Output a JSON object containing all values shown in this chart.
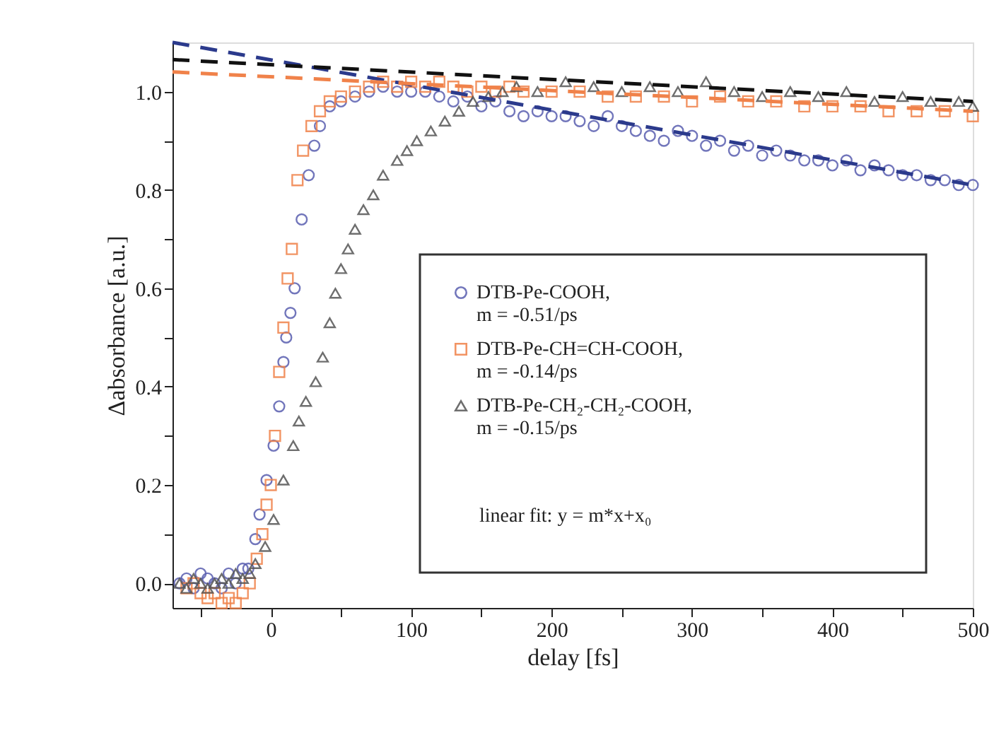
{
  "chart_data": {
    "type": "scatter",
    "xlabel": "delay [fs]",
    "ylabel": "Δabsorbance [a.u.]",
    "xlim": [
      -70,
      500
    ],
    "ylim": [
      -0.05,
      1.1
    ],
    "xticks": [
      {
        "value": -50,
        "label": null
      },
      0,
      {
        "value": 50,
        "label": null
      },
      100,
      {
        "value": 150,
        "label": null
      },
      200,
      {
        "value": 250,
        "label": null
      },
      300,
      {
        "value": 350,
        "label": null
      },
      400,
      {
        "value": 450,
        "label": null
      },
      500
    ],
    "yticks": [
      {
        "value": 0,
        "label": "0.0"
      },
      {
        "value": 0.1,
        "label": null
      },
      {
        "value": 0.2,
        "label": "0.2"
      },
      {
        "value": 0.3,
        "label": null
      },
      {
        "value": 0.4,
        "label": "0.4"
      },
      {
        "value": 0.5,
        "label": null
      },
      {
        "value": 0.6,
        "label": "0.6"
      },
      {
        "value": 0.7,
        "label": null
      },
      {
        "value": 0.8,
        "label": "0.8"
      },
      {
        "value": 0.9,
        "label": null
      },
      {
        "value": 1.0,
        "label": "1.0"
      }
    ],
    "grid": false,
    "legend": "bottom right",
    "annotations": [
      "linear fit: y = m*x+x₀"
    ],
    "series": [
      {
        "name": "DTB-Pe-COOH,\n  m = -0.51/ps",
        "marker": "circle",
        "color": "#5a5fb0",
        "x": [
          -65,
          -60,
          -55,
          -50,
          -45,
          -40,
          -35,
          -30,
          -25,
          -20,
          -16,
          -11,
          -8,
          -3,
          2,
          6,
          9,
          11,
          14,
          17,
          22,
          27,
          31,
          35,
          42,
          50,
          60,
          70,
          80,
          90,
          100,
          110,
          120,
          130,
          140,
          150,
          160,
          170,
          180,
          190,
          200,
          210,
          220,
          230,
          240,
          250,
          260,
          270,
          280,
          290,
          300,
          310,
          320,
          330,
          340,
          350,
          360,
          370,
          380,
          390,
          400,
          410,
          420,
          430,
          440,
          450,
          460,
          470,
          480,
          490,
          500
        ],
        "values": [
          0.0,
          0.01,
          -0.01,
          0.02,
          0.01,
          0.0,
          -0.01,
          0.02,
          0.0,
          0.03,
          0.03,
          0.09,
          0.14,
          0.21,
          0.28,
          0.36,
          0.45,
          0.5,
          0.55,
          0.6,
          0.74,
          0.83,
          0.89,
          0.93,
          0.97,
          0.98,
          0.99,
          1.0,
          1.01,
          1.0,
          1.0,
          1.0,
          0.99,
          0.98,
          0.99,
          0.97,
          0.98,
          0.96,
          0.95,
          0.96,
          0.95,
          0.95,
          0.94,
          0.93,
          0.95,
          0.93,
          0.92,
          0.91,
          0.9,
          0.92,
          0.91,
          0.89,
          0.9,
          0.88,
          0.89,
          0.87,
          0.88,
          0.87,
          0.86,
          0.86,
          0.85,
          0.86,
          0.84,
          0.85,
          0.84,
          0.83,
          0.83,
          0.82,
          0.82,
          0.81,
          0.81
        ]
      },
      {
        "name": "DTB-Pe-CH=CH-COOH,\n  m = -0.14/ps",
        "marker": "square",
        "color": "#f0824a",
        "x": [
          -60,
          -55,
          -50,
          -45,
          -40,
          -35,
          -30,
          -25,
          -20,
          -15,
          -10,
          -6,
          -3,
          0,
          3,
          6,
          9,
          12,
          15,
          19,
          23,
          29,
          35,
          42,
          50,
          60,
          70,
          80,
          90,
          100,
          110,
          120,
          130,
          140,
          150,
          160,
          170,
          180,
          200,
          220,
          240,
          260,
          280,
          300,
          320,
          340,
          360,
          380,
          400,
          420,
          440,
          460,
          480,
          500
        ],
        "values": [
          -0.01,
          0.0,
          -0.02,
          -0.03,
          -0.02,
          -0.04,
          -0.03,
          -0.04,
          -0.02,
          0.0,
          0.05,
          0.1,
          0.16,
          0.2,
          0.3,
          0.43,
          0.52,
          0.62,
          0.68,
          0.82,
          0.88,
          0.93,
          0.96,
          0.98,
          0.99,
          1.0,
          1.01,
          1.02,
          1.01,
          1.02,
          1.01,
          1.02,
          1.01,
          1.0,
          1.01,
          1.0,
          1.01,
          1.0,
          1.0,
          1.0,
          0.99,
          0.99,
          0.99,
          0.98,
          0.99,
          0.98,
          0.98,
          0.97,
          0.97,
          0.97,
          0.96,
          0.96,
          0.96,
          0.95
        ]
      },
      {
        "name": "DTB-Pe-CH₂-CH₂-COOH,\n  m = -0.15/ps",
        "marker": "triangle",
        "color": "#555555",
        "x": [
          -65,
          -60,
          -55,
          -50,
          -45,
          -40,
          -35,
          -30,
          -25,
          -20,
          -15,
          -11,
          -4,
          2,
          9,
          16,
          20,
          25,
          32,
          37,
          42,
          46,
          50,
          55,
          60,
          66,
          73,
          80,
          90,
          97,
          104,
          114,
          124,
          134,
          144,
          155,
          165,
          175,
          190,
          210,
          230,
          250,
          270,
          290,
          310,
          330,
          350,
          370,
          390,
          410,
          430,
          450,
          470,
          490,
          500
        ],
        "values": [
          0.0,
          -0.01,
          0.01,
          0.0,
          -0.01,
          0.0,
          0.01,
          0.0,
          0.02,
          0.01,
          0.02,
          0.04,
          0.075,
          0.13,
          0.21,
          0.28,
          0.33,
          0.37,
          0.41,
          0.46,
          0.53,
          0.59,
          0.64,
          0.68,
          0.72,
          0.76,
          0.79,
          0.83,
          0.86,
          0.88,
          0.9,
          0.92,
          0.94,
          0.96,
          0.98,
          0.99,
          1.0,
          1.01,
          1.0,
          1.02,
          1.01,
          1.0,
          1.01,
          1.0,
          1.02,
          1.0,
          0.99,
          1.0,
          0.99,
          1.0,
          0.98,
          0.99,
          0.98,
          0.98,
          0.97
        ]
      },
      {
        "type": "line",
        "line_style": "dashed",
        "color": "#2b3a8c",
        "x": [
          -70,
          500
        ],
        "values": [
          1.1,
          0.81
        ]
      },
      {
        "type": "line",
        "line_style": "dashed",
        "color": "#f0824a",
        "x": [
          -70,
          500
        ],
        "values": [
          1.04,
          0.96
        ]
      },
      {
        "type": "line",
        "line_style": "dashed",
        "color": "#111111",
        "x": [
          -70,
          500
        ],
        "values": [
          1.065,
          0.98
        ]
      }
    ]
  }
}
